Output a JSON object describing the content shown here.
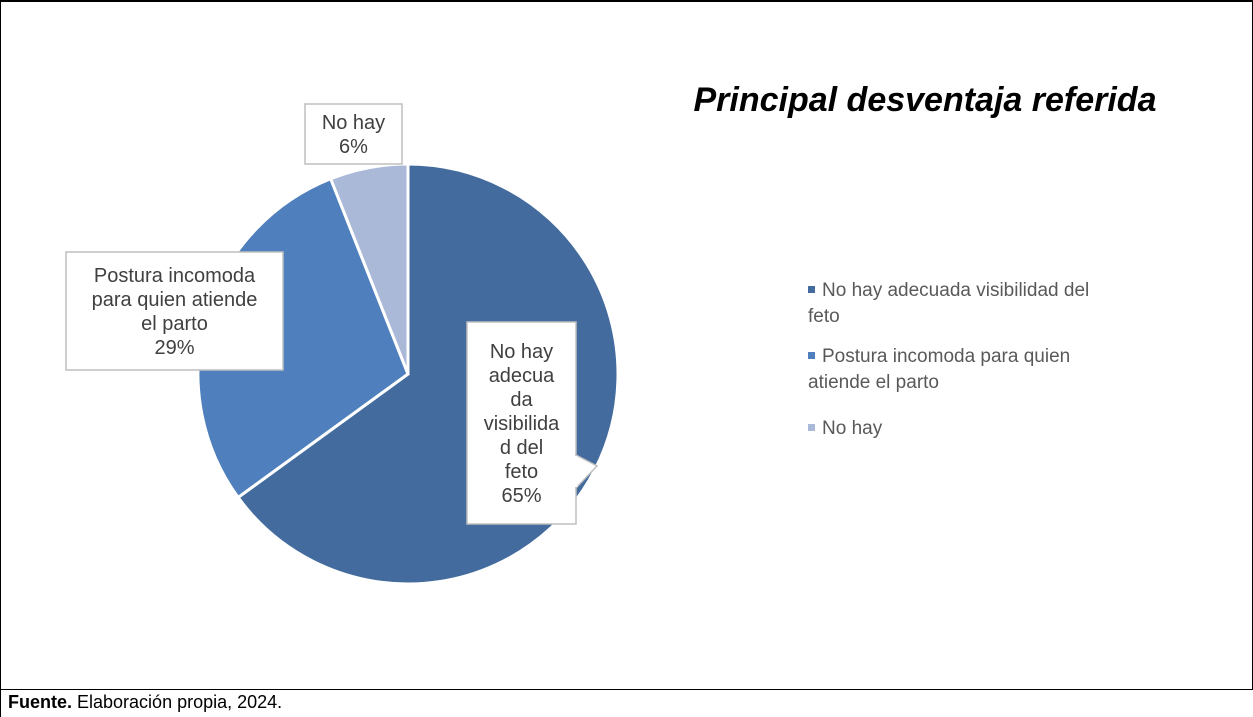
{
  "chart_data": {
    "type": "pie",
    "title": "Principal desventaja referida",
    "categories": [
      "No hay adecuada visibilidad del feto",
      "Postura incomoda para quien atiende el parto",
      "No hay"
    ],
    "values": [
      65,
      29,
      6
    ],
    "value_labels": [
      "65%",
      "29%",
      "6%"
    ],
    "colors": [
      "#436b9e",
      "#4f80bd",
      "#aab9d8"
    ],
    "data_labels": [
      [
        "No hay",
        "adecua",
        "da",
        "visibilida",
        "d del",
        "feto",
        "65%"
      ],
      [
        "Postura incomoda",
        "para quien atiende",
        "el parto",
        "29%"
      ],
      [
        "No hay",
        "6%"
      ]
    ],
    "legend": {
      "position": "right",
      "entries": [
        [
          "No hay adecuada visibilidad del",
          "feto"
        ],
        [
          "Postura incomoda para quien",
          "atiende el parto"
        ],
        [
          "No hay"
        ]
      ]
    }
  },
  "source": {
    "label": "Fuente.",
    "text": " Elaboración propia, 2024."
  }
}
